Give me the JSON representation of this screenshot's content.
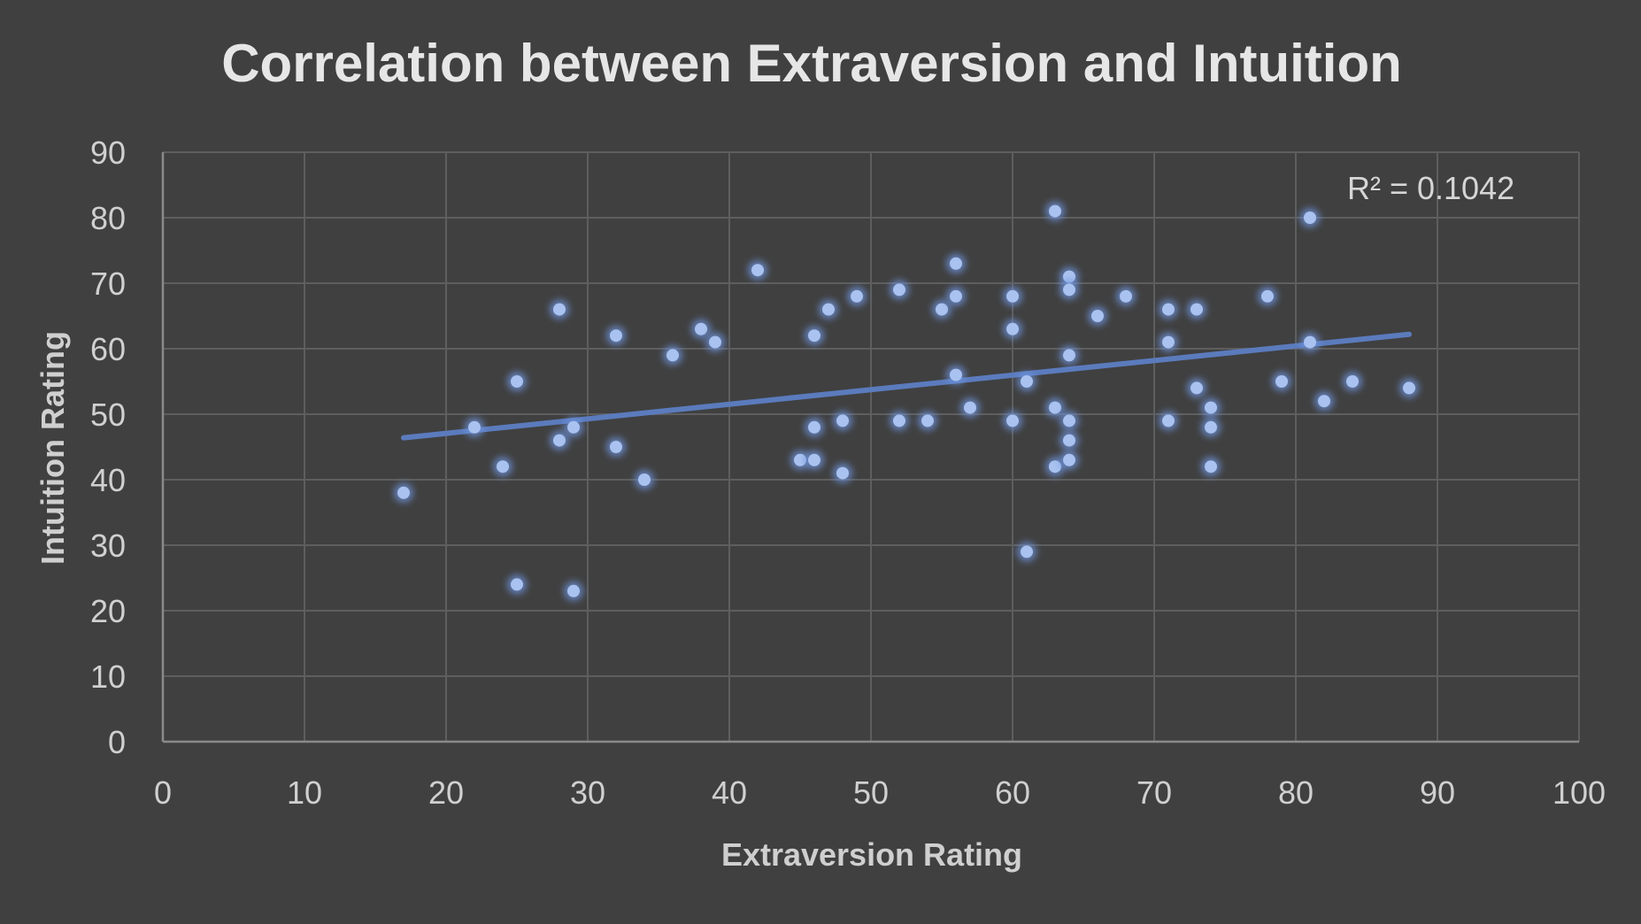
{
  "chart_data": {
    "type": "scatter",
    "title": "Correlation between Extraversion and Intuition",
    "xlabel": "Extraversion Rating",
    "ylabel": "Intuition Rating",
    "xlim": [
      0,
      100
    ],
    "ylim": [
      0,
      90
    ],
    "x_ticks": [
      0,
      10,
      20,
      30,
      40,
      50,
      60,
      70,
      80,
      90,
      100
    ],
    "y_ticks": [
      0,
      10,
      20,
      30,
      40,
      50,
      60,
      70,
      80,
      90
    ],
    "grid": true,
    "legend": false,
    "series": [
      {
        "points": [
          [
            17,
            38
          ],
          [
            22,
            48
          ],
          [
            24,
            42
          ],
          [
            25,
            55
          ],
          [
            25,
            24
          ],
          [
            28,
            66
          ],
          [
            28,
            46
          ],
          [
            29,
            48
          ],
          [
            29,
            23
          ],
          [
            32,
            62
          ],
          [
            32,
            45
          ],
          [
            34,
            40
          ],
          [
            36,
            59
          ],
          [
            38,
            63
          ],
          [
            39,
            61
          ],
          [
            42,
            72
          ],
          [
            45,
            43
          ],
          [
            46,
            62
          ],
          [
            46,
            48
          ],
          [
            46,
            43
          ],
          [
            47,
            66
          ],
          [
            48,
            49
          ],
          [
            48,
            41
          ],
          [
            49,
            68
          ],
          [
            52,
            69
          ],
          [
            52,
            49
          ],
          [
            54,
            49
          ],
          [
            55,
            66
          ],
          [
            56,
            73
          ],
          [
            56,
            68
          ],
          [
            56,
            56
          ],
          [
            57,
            51
          ],
          [
            60,
            68
          ],
          [
            60,
            63
          ],
          [
            60,
            49
          ],
          [
            61,
            55
          ],
          [
            61,
            29
          ],
          [
            63,
            81
          ],
          [
            63,
            51
          ],
          [
            63,
            42
          ],
          [
            64,
            71
          ],
          [
            64,
            69
          ],
          [
            64,
            59
          ],
          [
            64,
            49
          ],
          [
            64,
            46
          ],
          [
            64,
            43
          ],
          [
            66,
            65
          ],
          [
            68,
            68
          ],
          [
            71,
            66
          ],
          [
            71,
            61
          ],
          [
            71,
            49
          ],
          [
            73,
            66
          ],
          [
            73,
            54
          ],
          [
            74,
            51
          ],
          [
            74,
            48
          ],
          [
            74,
            42
          ],
          [
            78,
            68
          ],
          [
            79,
            55
          ],
          [
            81,
            80
          ],
          [
            81,
            61
          ],
          [
            82,
            52
          ],
          [
            84,
            55
          ],
          [
            88,
            54
          ]
        ]
      }
    ],
    "trendline": {
      "type": "linear",
      "x_start": 17,
      "y_start": 46.4,
      "x_end": 88,
      "y_end": 62.2
    },
    "annotation": "R² = 0.1042",
    "colors": {
      "background": "#404040",
      "point": "#a9c2ef",
      "point_glow": "#6f95e0",
      "trendline": "#5b7bbd",
      "grid": "#5e5e5e",
      "axis": "#8a8a8a"
    }
  }
}
